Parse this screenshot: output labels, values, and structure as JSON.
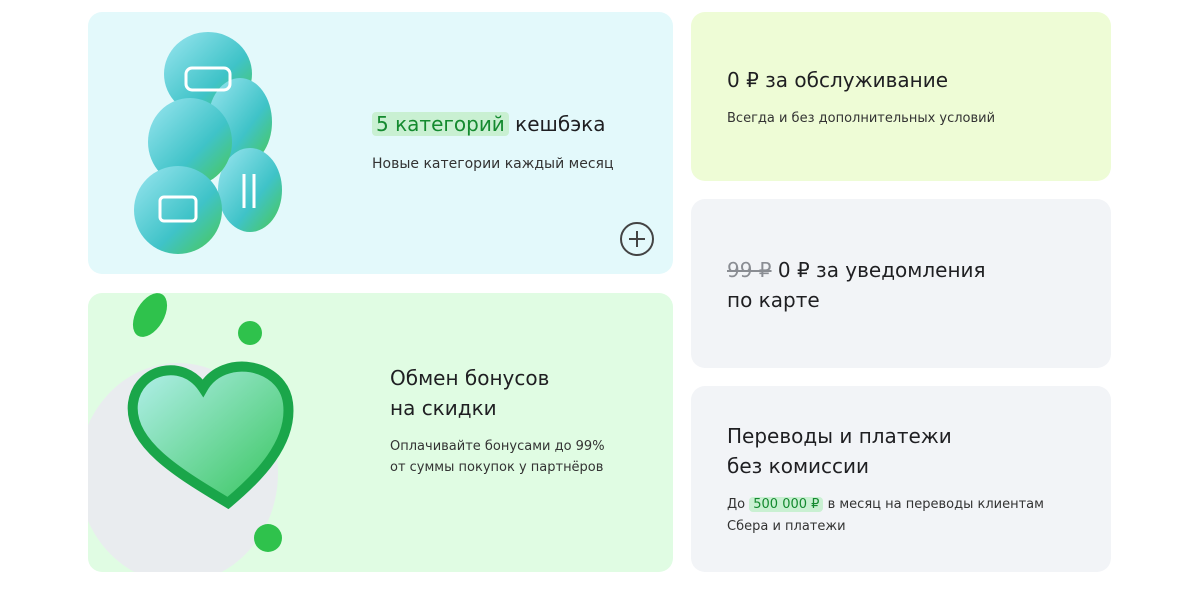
{
  "cashback": {
    "highlight": "5 категорий",
    "title_rest": "кешбэка",
    "subtitle": "Новые категории каждый месяц",
    "expand_icon": "plus-circle-icon"
  },
  "bonuses": {
    "title_line1": "Обмен бонусов",
    "title_line2": "на скидки",
    "subtitle_line1": "Оплачивайте бонусами до 99%",
    "subtitle_line2": "от суммы покупок у партнёров"
  },
  "service": {
    "title": "0 ₽ за обслуживание",
    "subtitle": "Всегда и без дополнительных условий"
  },
  "notifications": {
    "old_price": "99 ₽",
    "title_rest": "0 ₽ за уведомления",
    "title_line2": "по карте"
  },
  "transfers": {
    "title_line1": "Переводы и платежи",
    "title_line2": "без комиссии",
    "prefix": "До",
    "highlight": "500 000 ₽",
    "rest": "в месяц на переводы клиентам",
    "line2": "Сбера и платежи"
  },
  "colors": {
    "accent": "#148a2f",
    "highlight_bg": "#c9f0d2"
  }
}
